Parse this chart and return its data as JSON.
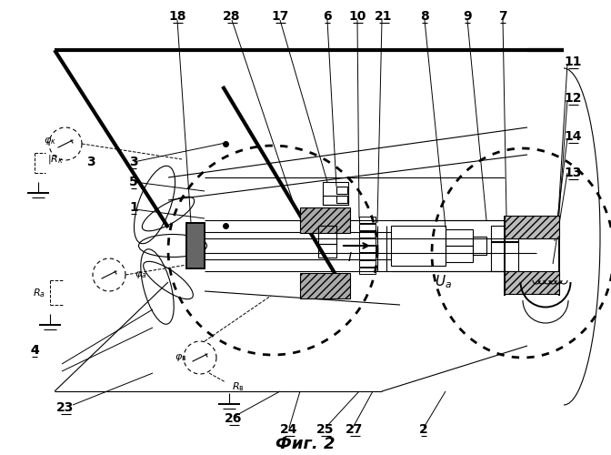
{
  "title": "Фиг. 2",
  "bg_color": "#ffffff",
  "line_color": "#000000",
  "fig_width": 6.72,
  "fig_height": 5.0,
  "dpi": 100
}
